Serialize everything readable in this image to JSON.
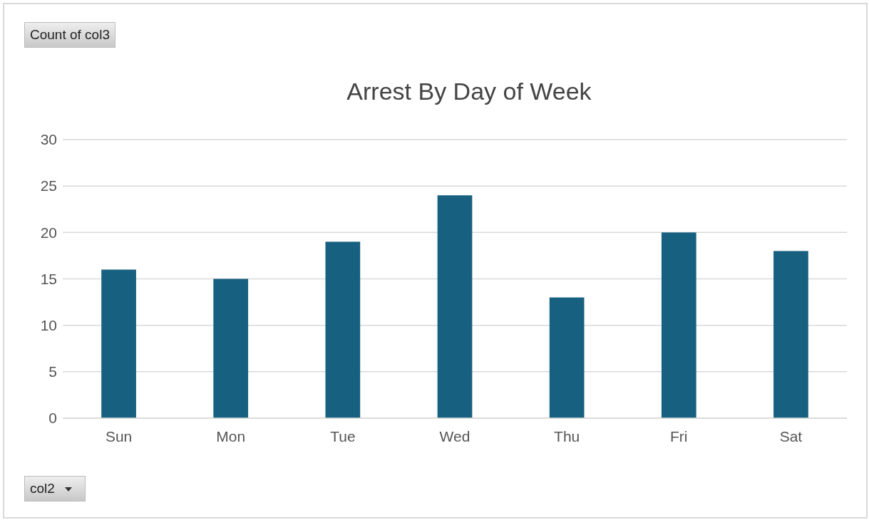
{
  "chart_data": {
    "type": "bar",
    "title": "Arrest By Day of Week",
    "categories": [
      "Sun",
      "Mon",
      "Tue",
      "Wed",
      "Thu",
      "Fri",
      "Sat"
    ],
    "values": [
      16,
      15,
      19,
      24,
      13,
      20,
      18
    ],
    "color": "#17607f",
    "ylim": [
      0,
      30
    ],
    "yticks": [
      0,
      5,
      10,
      15,
      20,
      25,
      30
    ],
    "grid": "y",
    "annotations": [
      "Count of col3",
      "col2"
    ]
  }
}
